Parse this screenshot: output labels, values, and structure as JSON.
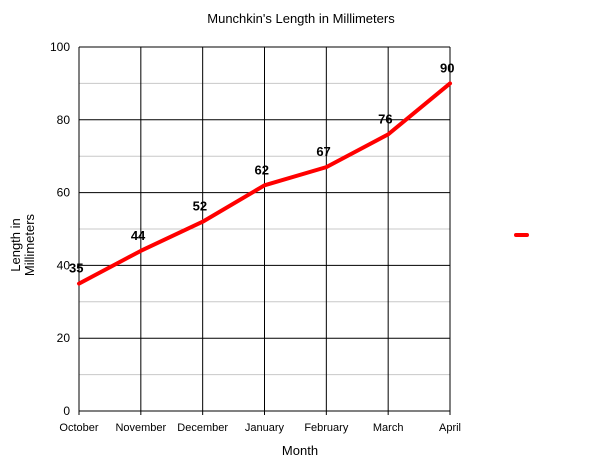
{
  "chart_data": {
    "type": "line",
    "title": "Munchkin's Length in Millimeters",
    "xlabel": "Month",
    "ylabel_lines": [
      "Length in",
      "Millimeters"
    ],
    "categories": [
      "October",
      "November",
      "December",
      "January",
      "February",
      "March",
      "April"
    ],
    "series": [
      {
        "name": "",
        "color": "#ff0000",
        "values": [
          35,
          44,
          52,
          62,
          67,
          76,
          90
        ]
      }
    ],
    "ylim": [
      0,
      100
    ],
    "yticks": [
      0,
      20,
      40,
      60,
      80,
      100
    ],
    "minor_gridlines": true,
    "data_labels": true,
    "legend_position": "right"
  }
}
